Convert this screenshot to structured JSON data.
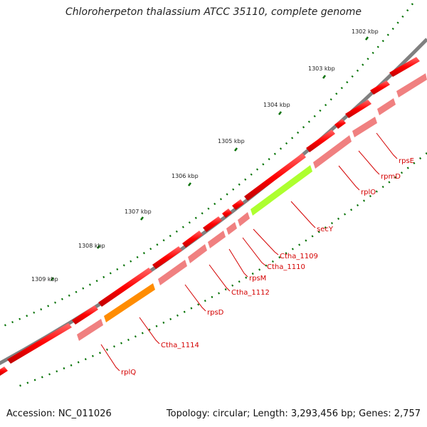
{
  "title": "Chloroherpeton thalassium ATCC 35110, complete genome",
  "footer": {
    "accession": "Accession: NC_011026",
    "summary": "Topology: circular; Length: 3,293,456 bp; Genes: 2,757"
  },
  "scale_labels": [
    "1302 kbp",
    "1303 kbp",
    "1304 kbp",
    "1305 kbp",
    "1306 kbp",
    "1307 kbp",
    "1308 kbp",
    "1309 kbp"
  ],
  "gene_labels": [
    "rpsE",
    "rpmD",
    "rplO",
    "secY",
    "Ctha_1109",
    "Ctha_1110",
    "rpsM",
    "Ctha_1112",
    "rpsD",
    "Ctha_1114",
    "rplQ"
  ],
  "colors": {
    "backbone": "#808080",
    "gene_forward": "#ff0000",
    "gene_reverse": "#f08080",
    "secY": "#adff2f",
    "Ctha_1114": "#ff8c00",
    "tick": "#007000",
    "label": "#d40000"
  }
}
